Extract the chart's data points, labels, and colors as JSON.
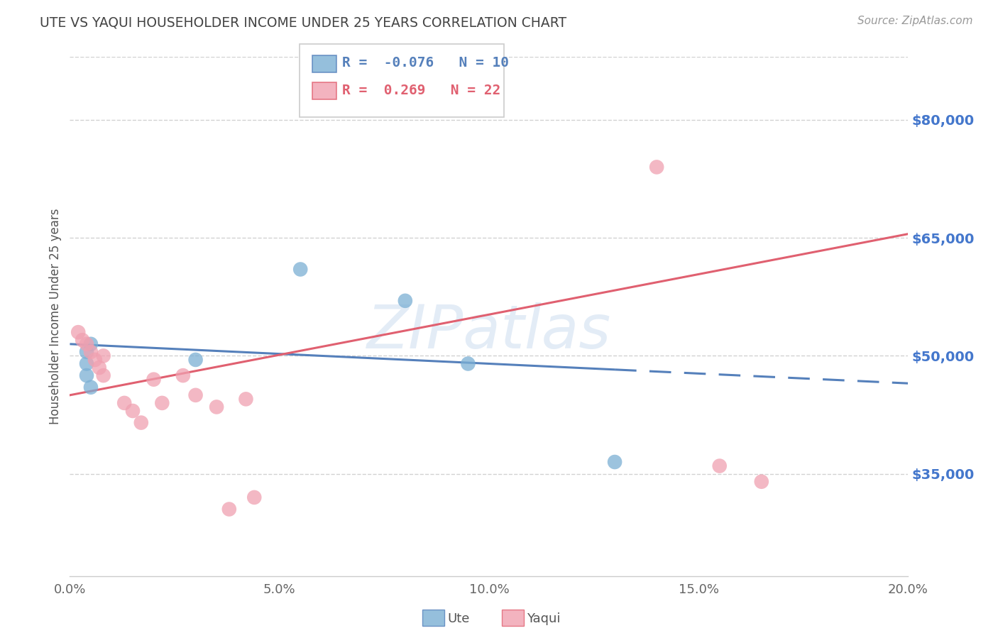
{
  "title": "UTE VS YAQUI HOUSEHOLDER INCOME UNDER 25 YEARS CORRELATION CHART",
  "source": "Source: ZipAtlas.com",
  "ylabel": "Householder Income Under 25 years",
  "watermark": "ZIPatlas",
  "ute_R": -0.076,
  "ute_N": 10,
  "yaqui_R": 0.269,
  "yaqui_N": 22,
  "ute_color": "#7bafd4",
  "yaqui_color": "#f0a0b0",
  "ute_line_color": "#5580bb",
  "yaqui_line_color": "#e06070",
  "x_min": 0.0,
  "x_max": 0.2,
  "y_min": 22000,
  "y_max": 88000,
  "yticks": [
    35000,
    50000,
    65000,
    80000
  ],
  "ytick_labels": [
    "$35,000",
    "$50,000",
    "$65,000",
    "$80,000"
  ],
  "xtick_labels": [
    "0.0%",
    "",
    "",
    "",
    "",
    "5.0%",
    "",
    "",
    "",
    "",
    "10.0%",
    "",
    "",
    "",
    "",
    "15.0%",
    "",
    "",
    "",
    "",
    "20.0%"
  ],
  "xticks": [
    0.0,
    0.01,
    0.02,
    0.03,
    0.04,
    0.05,
    0.06,
    0.07,
    0.08,
    0.09,
    0.1,
    0.11,
    0.12,
    0.13,
    0.14,
    0.15,
    0.16,
    0.17,
    0.18,
    0.19,
    0.2
  ],
  "xtick_major": [
    0.0,
    0.05,
    0.1,
    0.15,
    0.2
  ],
  "xtick_major_labels": [
    "0.0%",
    "5.0%",
    "10.0%",
    "15.0%",
    "20.0%"
  ],
  "ute_x": [
    0.004,
    0.004,
    0.004,
    0.005,
    0.005,
    0.03,
    0.055,
    0.08,
    0.095,
    0.13
  ],
  "ute_y": [
    50500,
    49000,
    47500,
    51500,
    46000,
    49500,
    61000,
    57000,
    49000,
    36500
  ],
  "yaqui_x": [
    0.002,
    0.003,
    0.004,
    0.005,
    0.006,
    0.007,
    0.008,
    0.008,
    0.013,
    0.015,
    0.017,
    0.02,
    0.022,
    0.027,
    0.03,
    0.035,
    0.038,
    0.042,
    0.044,
    0.14,
    0.155,
    0.165
  ],
  "yaqui_y": [
    53000,
    52000,
    51500,
    50500,
    49500,
    48500,
    50000,
    47500,
    44000,
    43000,
    41500,
    47000,
    44000,
    47500,
    45000,
    43500,
    30500,
    44500,
    32000,
    74000,
    36000,
    34000
  ],
  "background_color": "#ffffff",
  "grid_color": "#cccccc",
  "title_color": "#444444",
  "axis_label_color": "#4477cc",
  "legend_border_color": "#cccccc"
}
